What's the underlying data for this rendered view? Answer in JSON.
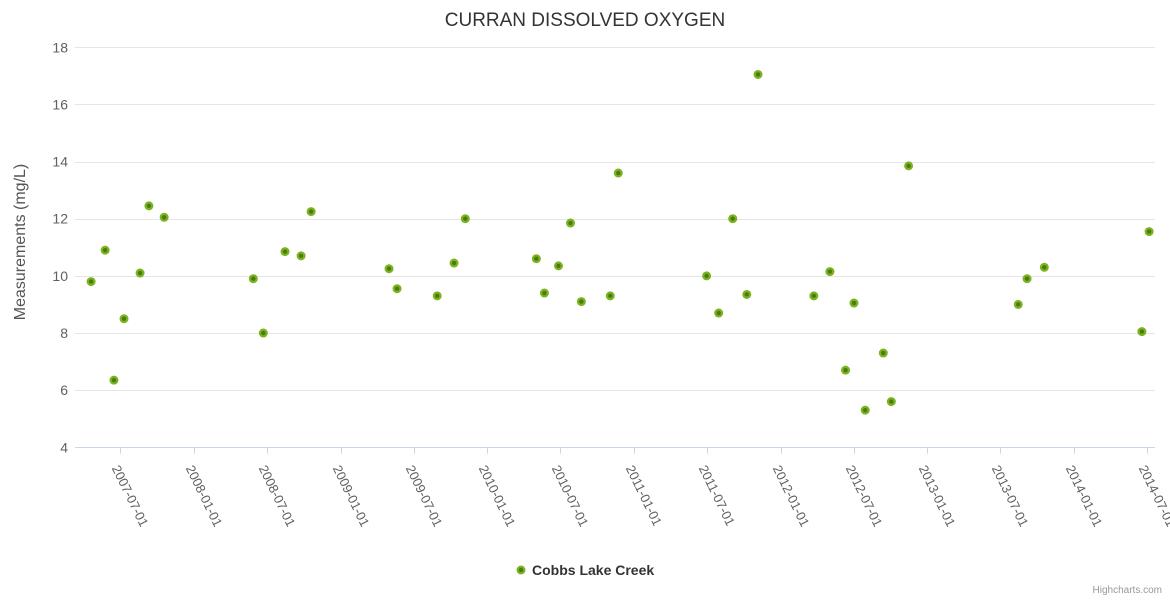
{
  "title": "CURRAN DISSOLVED OXYGEN",
  "credits": "Highcharts.com",
  "chart_data": {
    "type": "scatter",
    "title": "CURRAN DISSOLVED OXYGEN",
    "xlabel": "",
    "ylabel": "Measurements (mg/L)",
    "ylim": [
      4,
      18
    ],
    "y_ticks": [
      4,
      6,
      8,
      10,
      12,
      14,
      16,
      18
    ],
    "x_ticks": [
      "2007-07-01",
      "2008-01-01",
      "2008-07-01",
      "2009-01-01",
      "2009-07-01",
      "2010-01-01",
      "2010-07-01",
      "2011-01-01",
      "2011-07-01",
      "2012-01-01",
      "2012-07-01",
      "2013-01-01",
      "2013-07-01",
      "2014-01-01",
      "2014-07-01"
    ],
    "grid": true,
    "legend_position": "bottom",
    "gridline_color": "#e6e6e6",
    "axis_line_color": "#ccd6eb",
    "series": [
      {
        "name": "Cobbs Lake Creek",
        "color": "#7bb41e",
        "marker_center_color": "#4b7a12",
        "points": [
          [
            "2007-04-20",
            9.8
          ],
          [
            "2007-05-25",
            10.9
          ],
          [
            "2007-06-16",
            6.35
          ],
          [
            "2007-07-11",
            8.5
          ],
          [
            "2007-08-20",
            10.1
          ],
          [
            "2007-09-11",
            12.45
          ],
          [
            "2007-10-19",
            12.05
          ],
          [
            "2008-05-28",
            9.9
          ],
          [
            "2008-06-22",
            8.0
          ],
          [
            "2008-08-15",
            10.85
          ],
          [
            "2008-09-24",
            10.7
          ],
          [
            "2008-10-19",
            12.25
          ],
          [
            "2009-05-01",
            10.25
          ],
          [
            "2009-05-21",
            9.55
          ],
          [
            "2009-08-29",
            9.3
          ],
          [
            "2009-10-10",
            10.45
          ],
          [
            "2009-11-07",
            12.0
          ],
          [
            "2010-05-03",
            10.6
          ],
          [
            "2010-05-23",
            9.4
          ],
          [
            "2010-06-27",
            10.35
          ],
          [
            "2010-07-27",
            11.85
          ],
          [
            "2010-08-23",
            9.1
          ],
          [
            "2010-11-03",
            9.3
          ],
          [
            "2010-11-23",
            13.6
          ],
          [
            "2011-07-01",
            10.0
          ],
          [
            "2011-07-31",
            8.7
          ],
          [
            "2011-09-04",
            12.0
          ],
          [
            "2011-10-09",
            9.35
          ],
          [
            "2011-11-06",
            17.05
          ],
          [
            "2012-03-24",
            9.3
          ],
          [
            "2012-05-03",
            10.15
          ],
          [
            "2012-06-11",
            6.7
          ],
          [
            "2012-07-02",
            9.05
          ],
          [
            "2012-07-30",
            5.3
          ],
          [
            "2012-09-13",
            7.3
          ],
          [
            "2012-10-03",
            5.6
          ],
          [
            "2012-11-15",
            13.85
          ],
          [
            "2013-08-15",
            9.0
          ],
          [
            "2013-09-06",
            9.9
          ],
          [
            "2013-10-19",
            10.3
          ],
          [
            "2014-06-19",
            8.05
          ],
          [
            "2014-07-07",
            11.55
          ]
        ]
      }
    ]
  }
}
